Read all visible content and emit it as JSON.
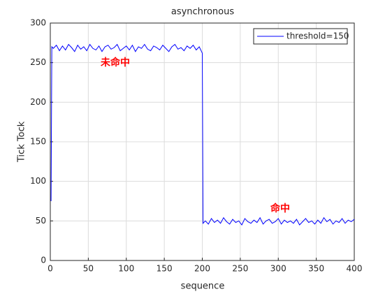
{
  "chart_data": {
    "type": "line",
    "title": "asynchronous",
    "x_label": "sequence",
    "y_label": "Tick Tock",
    "x": [
      1,
      2,
      4,
      8,
      12,
      16,
      20,
      24,
      28,
      32,
      36,
      40,
      44,
      48,
      52,
      56,
      60,
      64,
      68,
      72,
      76,
      80,
      84,
      88,
      92,
      96,
      100,
      104,
      108,
      112,
      116,
      120,
      124,
      128,
      132,
      136,
      140,
      144,
      148,
      152,
      156,
      160,
      164,
      168,
      172,
      176,
      180,
      184,
      188,
      192,
      196,
      200,
      201,
      204,
      208,
      212,
      216,
      220,
      224,
      228,
      232,
      236,
      240,
      244,
      248,
      252,
      256,
      260,
      264,
      268,
      272,
      276,
      280,
      284,
      288,
      292,
      296,
      300,
      304,
      308,
      312,
      316,
      320,
      324,
      328,
      332,
      336,
      340,
      344,
      348,
      352,
      356,
      360,
      364,
      368,
      372,
      376,
      380,
      384,
      388,
      392,
      396,
      400
    ],
    "series": [
      {
        "name": "threshold=150",
        "color": "#0000ff",
        "values": [
          75,
          270,
          268,
          272,
          265,
          271,
          266,
          273,
          269,
          264,
          272,
          267,
          270,
          265,
          273,
          268,
          266,
          271,
          264,
          270,
          272,
          267,
          269,
          273,
          265,
          268,
          271,
          266,
          272,
          264,
          270,
          268,
          273,
          267,
          265,
          271,
          269,
          266,
          272,
          268,
          264,
          270,
          273,
          267,
          269,
          265,
          271,
          268,
          272,
          266,
          270,
          262,
          47,
          50,
          46,
          53,
          48,
          51,
          47,
          54,
          49,
          46,
          52,
          48,
          50,
          45,
          53,
          49,
          47,
          51,
          48,
          54,
          46,
          50,
          52,
          47,
          49,
          53,
          46,
          51,
          48,
          50,
          47,
          52,
          45,
          49,
          53,
          48,
          50,
          46,
          51,
          47,
          54,
          49,
          52,
          46,
          50,
          48,
          53,
          47,
          51,
          49,
          52
        ]
      }
    ],
    "annotations": [
      "未命中",
      "命中"
    ],
    "annotation_color": "#ff0000",
    "xlim": [
      0,
      400
    ],
    "xticks": [
      0,
      50,
      100,
      150,
      200,
      250,
      300,
      350,
      400
    ],
    "ylim": [
      0,
      300
    ],
    "yticks": [
      0,
      50,
      100,
      150,
      200,
      250,
      300
    ],
    "grid": true,
    "legend_position": "upper-right"
  }
}
